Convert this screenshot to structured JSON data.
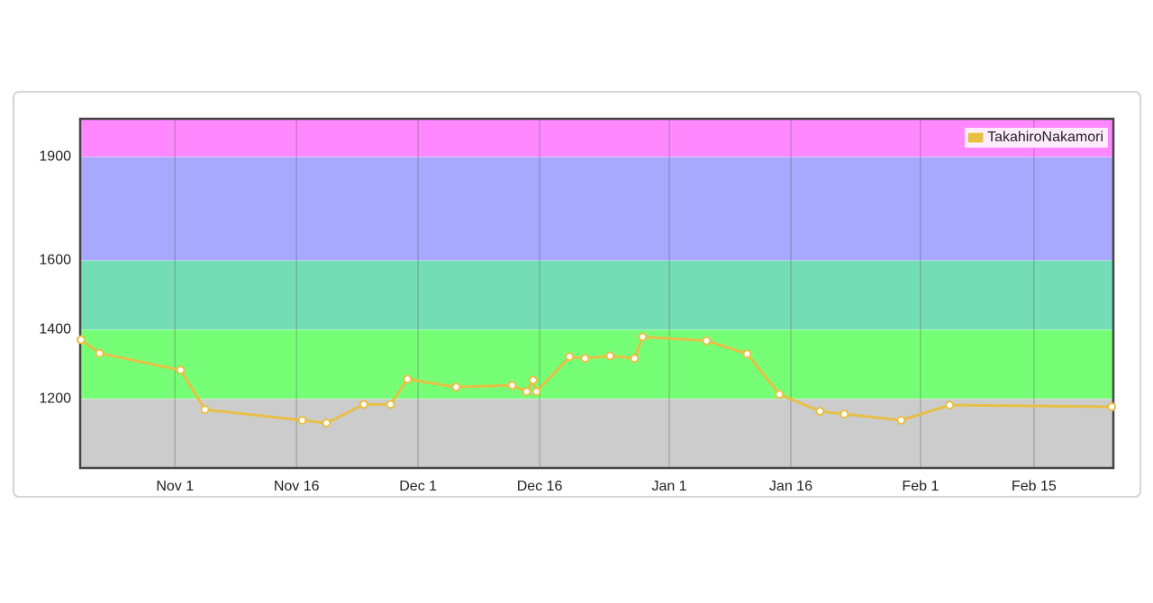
{
  "chart_data": {
    "type": "line",
    "xlim": [
      -11.7,
      115.8
    ],
    "xticks": [
      {
        "value": 0,
        "label": "Nov 1"
      },
      {
        "value": 15,
        "label": "Nov 16"
      },
      {
        "value": 30,
        "label": "Dec 1"
      },
      {
        "value": 45,
        "label": "Dec 16"
      },
      {
        "value": 61,
        "label": "Jan 1"
      },
      {
        "value": 76,
        "label": "Jan 16"
      },
      {
        "value": 92,
        "label": "Feb 1"
      },
      {
        "value": 106,
        "label": "Feb 15"
      }
    ],
    "ylim": [
      1000,
      2010
    ],
    "yticks": [
      1200,
      1400,
      1600,
      1900
    ],
    "grid": true,
    "legend": "top-right",
    "bands": [
      {
        "from": 1000,
        "to": 1200,
        "color": "#cccccc"
      },
      {
        "from": 1200,
        "to": 1400,
        "color": "#76ff76"
      },
      {
        "from": 1400,
        "to": 1600,
        "color": "#72ddb6"
      },
      {
        "from": 1600,
        "to": 1900,
        "color": "#a8a8ff"
      },
      {
        "from": 1900,
        "to": 2010,
        "color": "#ff88ff"
      }
    ],
    "series": [
      {
        "name": "TakahiroNakamori",
        "color": "#e8bf45",
        "x": [
          -11.6,
          -9.3,
          0.7,
          3.7,
          15.7,
          18.7,
          23.3,
          26.6,
          28.7,
          34.7,
          41.6,
          43.4,
          44.2,
          44.6,
          48.7,
          50.6,
          53.7,
          56.7,
          57.7,
          65.6,
          70.6,
          74.6,
          79.6,
          82.6,
          89.6,
          95.6,
          115.6
        ],
        "values": [
          1371,
          1332,
          1283,
          1169,
          1138,
          1130,
          1184,
          1184,
          1257,
          1234,
          1239,
          1221,
          1254,
          1221,
          1322,
          1317,
          1324,
          1317,
          1379,
          1368,
          1330,
          1213,
          1164,
          1156,
          1138,
          1182,
          1177
        ]
      }
    ]
  }
}
